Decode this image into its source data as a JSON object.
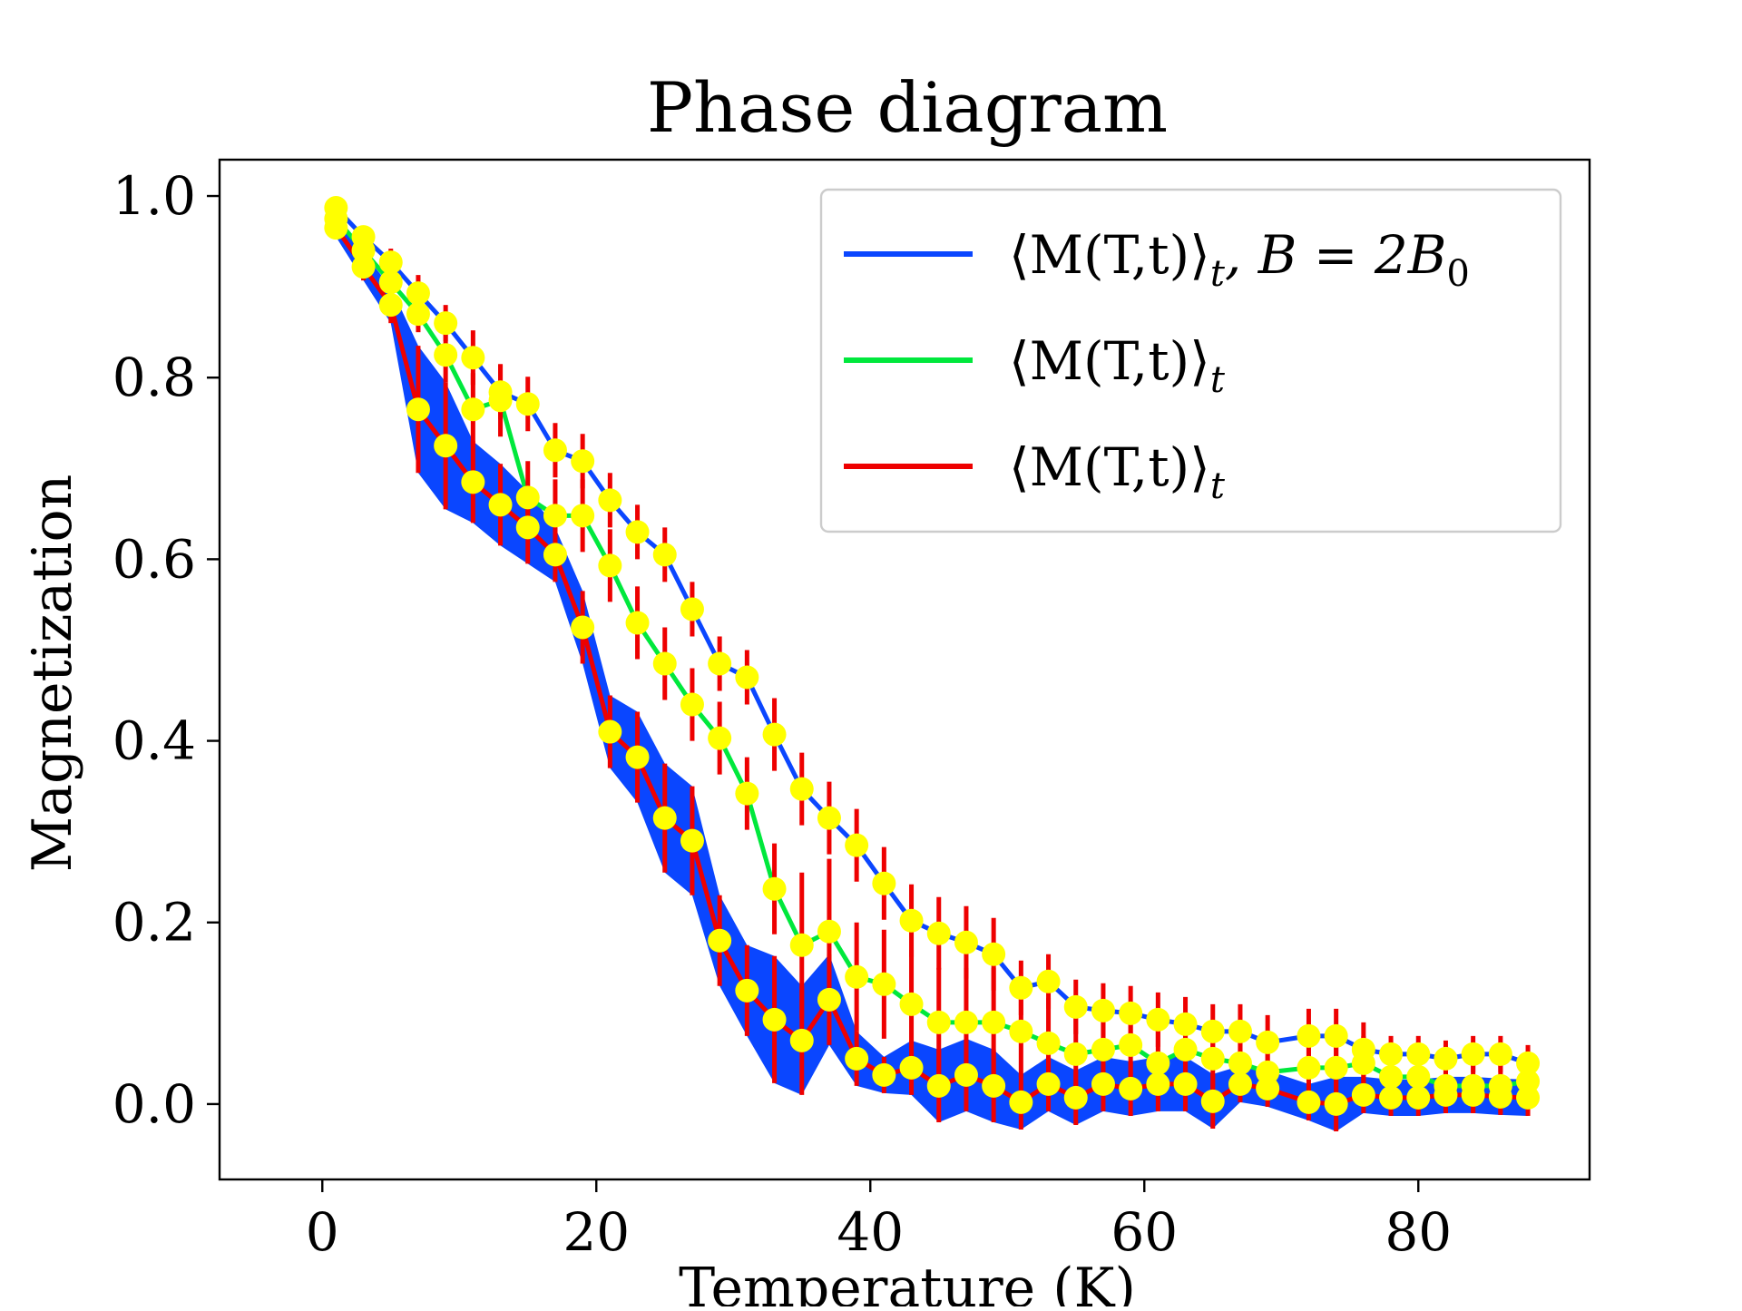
{
  "colors": {
    "blue": "#0a46ff",
    "green": "#00e83c",
    "red": "#ee0000",
    "marker": "#ffff00"
  },
  "chart_data": {
    "type": "line",
    "title": "Phase diagram",
    "xlabel": "Temperature (K)",
    "ylabel": "Magnetization",
    "xlim": [
      -7.5,
      92.5
    ],
    "ylim": [
      -0.083,
      1.04
    ],
    "xticks": [
      0,
      20,
      40,
      60,
      80
    ],
    "yticks": [
      0.0,
      0.2,
      0.4,
      0.6,
      0.8,
      1.0
    ],
    "xtick_labels": [
      "0",
      "20",
      "40",
      "60",
      "80"
    ],
    "ytick_labels": [
      "0.0",
      "0.2",
      "0.4",
      "0.6",
      "0.8",
      "1.0"
    ],
    "grid": false,
    "legend_position": "top-right",
    "x": [
      1,
      3,
      5,
      7,
      9,
      11,
      13,
      15,
      17,
      19,
      21,
      23,
      25,
      27,
      29,
      31,
      33,
      35,
      37,
      39,
      41,
      43,
      45,
      47,
      49,
      51,
      53,
      55,
      57,
      59,
      61,
      63,
      65,
      67,
      69,
      72,
      74,
      76,
      78,
      80,
      82,
      84,
      86,
      88
    ],
    "series": [
      {
        "name": "⟨M(T,t)⟩t, B = 2B0",
        "legend_main": "⟨M(T,t)⟩",
        "legend_sub": "t",
        "legend_suffix": ", B = 2B",
        "legend_suffix_sub": "0",
        "color_key": "blue",
        "values": [
          0.987,
          0.955,
          0.927,
          0.893,
          0.86,
          0.822,
          0.784,
          0.771,
          0.72,
          0.708,
          0.665,
          0.63,
          0.605,
          0.545,
          0.485,
          0.47,
          0.407,
          0.347,
          0.315,
          0.285,
          0.243,
          0.202,
          0.188,
          0.178,
          0.165,
          0.128,
          0.135,
          0.107,
          0.103,
          0.1,
          0.093,
          0.088,
          0.08,
          0.08,
          0.068,
          0.075,
          0.075,
          0.06,
          0.055,
          0.055,
          0.05,
          0.055,
          0.055,
          0.045
        ],
        "errors": [
          0.01,
          0.01,
          0.015,
          0.02,
          0.02,
          0.03,
          0.03,
          0.03,
          0.03,
          0.03,
          0.03,
          0.03,
          0.03,
          0.03,
          0.03,
          0.03,
          0.04,
          0.04,
          0.04,
          0.04,
          0.04,
          0.04,
          0.04,
          0.04,
          0.04,
          0.03,
          0.03,
          0.03,
          0.03,
          0.03,
          0.03,
          0.03,
          0.03,
          0.03,
          0.03,
          0.03,
          0.03,
          0.03,
          0.02,
          0.02,
          0.02,
          0.02,
          0.02,
          0.02
        ]
      },
      {
        "name": "⟨M(T,t)⟩t",
        "legend_main": "⟨M(T,t)⟩",
        "legend_sub": "t",
        "color_key": "green",
        "values": [
          0.975,
          0.94,
          0.905,
          0.87,
          0.825,
          0.765,
          0.775,
          0.668,
          0.648,
          0.648,
          0.593,
          0.53,
          0.485,
          0.44,
          0.403,
          0.342,
          0.237,
          0.175,
          0.19,
          0.14,
          0.132,
          0.11,
          0.09,
          0.09,
          0.09,
          0.08,
          0.067,
          0.055,
          0.06,
          0.065,
          0.045,
          0.06,
          0.05,
          0.045,
          0.035,
          0.04,
          0.04,
          0.045,
          0.03,
          0.03,
          0.02,
          0.02,
          0.02,
          0.025
        ],
        "errors": [
          0.01,
          0.01,
          0.015,
          0.02,
          0.03,
          0.04,
          0.04,
          0.04,
          0.04,
          0.04,
          0.04,
          0.04,
          0.04,
          0.04,
          0.04,
          0.04,
          0.05,
          0.08,
          0.08,
          0.06,
          0.06,
          0.06,
          0.06,
          0.06,
          0.06,
          0.05,
          0.05,
          0.05,
          0.04,
          0.04,
          0.04,
          0.04,
          0.04,
          0.03,
          0.03,
          0.03,
          0.03,
          0.03,
          0.03,
          0.03,
          0.03,
          0.03,
          0.03,
          0.03
        ]
      },
      {
        "name": "⟨M(T,t)⟩t",
        "legend_main": "⟨M(T,t)⟩",
        "legend_sub": "t",
        "color_key": "red",
        "band": true,
        "values": [
          0.965,
          0.922,
          0.88,
          0.765,
          0.725,
          0.685,
          0.66,
          0.635,
          0.605,
          0.525,
          0.41,
          0.382,
          0.315,
          0.29,
          0.18,
          0.125,
          0.093,
          0.07,
          0.115,
          0.05,
          0.032,
          0.04,
          0.02,
          0.032,
          0.02,
          0.002,
          0.022,
          0.007,
          0.022,
          0.017,
          0.022,
          0.022,
          0.003,
          0.022,
          0.017,
          0.002,
          0.0,
          0.01,
          0.007,
          0.007,
          0.01,
          0.01,
          0.008,
          0.007
        ],
        "errors": [
          0.01,
          0.015,
          0.02,
          0.07,
          0.07,
          0.045,
          0.045,
          0.04,
          0.03,
          0.04,
          0.04,
          0.05,
          0.06,
          0.06,
          0.05,
          0.05,
          0.07,
          0.06,
          0.05,
          0.03,
          0.02,
          0.03,
          0.04,
          0.04,
          0.04,
          0.03,
          0.03,
          0.03,
          0.03,
          0.03,
          0.03,
          0.03,
          0.03,
          0.02,
          0.02,
          0.02,
          0.03,
          0.02,
          0.02,
          0.02,
          0.02,
          0.02,
          0.02,
          0.02
        ]
      }
    ]
  }
}
